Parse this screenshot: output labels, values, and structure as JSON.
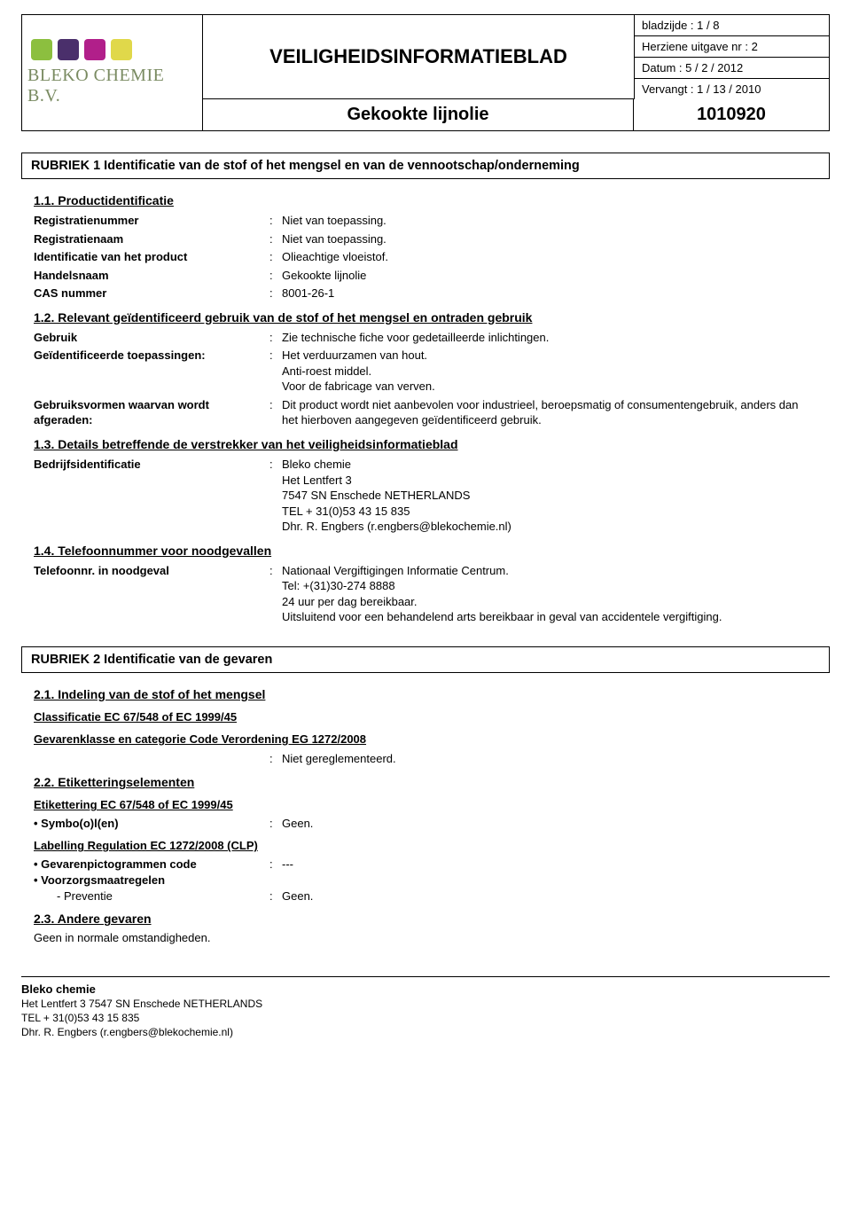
{
  "logo": {
    "colors": [
      "#8cbf3f",
      "#4a2f6b",
      "#b11f8a",
      "#e0d84a"
    ],
    "text": "BLEKO CHEMIE B.V."
  },
  "header": {
    "title": "VEILIGHEIDSINFORMATIEBLAD",
    "subtitle": "Gekookte lijnolie",
    "code": "1010920",
    "meta": {
      "page": "bladzijde : 1 / 8",
      "revision": "Herziene uitgave nr : 2",
      "date": "Datum : 5 / 2 / 2012",
      "replaces": "Vervangt : 1 / 13 / 2010"
    }
  },
  "rubriek1": {
    "heading": "RUBRIEK 1  Identificatie van de stof of het mengsel en van de vennootschap/onderneming",
    "s11": {
      "title": "1.1.  Productidentificatie",
      "rows": {
        "registratienummer": {
          "label": "Registratienummer",
          "value": "Niet van toepassing."
        },
        "registratienaam": {
          "label": "Registratienaam",
          "value": "Niet van toepassing."
        },
        "identificatie": {
          "label": "Identificatie van het product",
          "value": "Olieachtige vloeistof."
        },
        "handelsnaam": {
          "label": "Handelsnaam",
          "value": "Gekookte lijnolie"
        },
        "cas": {
          "label": "CAS nummer",
          "value": "8001-26-1"
        }
      }
    },
    "s12": {
      "title": "1.2.  Relevant geïdentificeerd gebruik van de stof of het mengsel en ontraden gebruik",
      "rows": {
        "gebruik": {
          "label": "Gebruik",
          "value": "Zie technische fiche voor gedetailleerde inlichtingen."
        },
        "toepassingen": {
          "label": "Geïdentificeerde toepassingen:",
          "value": "Het verduurzamen van hout.\nAnti-roest middel.\nVoor de fabricage van verven."
        },
        "afgeraden": {
          "label": "Gebruiksvormen waarvan wordt afgeraden:",
          "value": "Dit product wordt niet aanbevolen voor industrieel, beroepsmatig of consumentengebruik, anders dan het hierboven aangegeven geïdentificeerd gebruik."
        }
      }
    },
    "s13": {
      "title": "1.3.  Details betreffende de verstrekker van het veiligheidsinformatieblad",
      "rows": {
        "bedrijf": {
          "label": "Bedrijfsidentificatie",
          "value": "Bleko chemie\nHet Lentfert   3\n7547 SN  Enschede  NETHERLANDS\nTEL + 31(0)53 43 15 835\nDhr. R. Engbers (r.engbers@blekochemie.nl)"
        }
      }
    },
    "s14": {
      "title": "1.4.  Telefoonnummer voor noodgevallen",
      "rows": {
        "telefoon": {
          "label": "Telefoonnr. in noodgeval",
          "value": "Nationaal Vergiftigingen Informatie Centrum.\nTel: +(31)30-274 8888\n24 uur per dag bereikbaar.\nUitsluitend voor een behandelend arts bereikbaar in geval van accidentele vergiftiging."
        }
      }
    }
  },
  "rubriek2": {
    "heading": "RUBRIEK 2  Identificatie van de gevaren",
    "s21": {
      "title": "2.1.  Indeling van de stof of het mengsel",
      "classificatie": "Classificatie EC 67/548 of EC 1999/45",
      "gevarenklasse": "Gevarenklasse en categorie Code Verordening EG 1272/2008",
      "value": "Niet gereglementeerd."
    },
    "s22": {
      "title": "2.2.  Etiketteringselementen",
      "etikettering": "Etikettering EC 67/548 of EC 1999/45",
      "symbolen": {
        "label": "• Symbo(o)l(en)",
        "value": "Geen."
      },
      "labelling": "Labelling Regulation EC 1272/2008 (CLP)",
      "pictogrammen": {
        "label": "• Gevarenpictogrammen code",
        "value": "---"
      },
      "voorzorg": {
        "label": "• Voorzorgsmaatregelen"
      },
      "preventie": {
        "label": "- Preventie",
        "value": "Geen."
      }
    },
    "s23": {
      "title": "2.3.  Andere gevaren",
      "text": "Geen in normale omstandigheden."
    }
  },
  "footer": {
    "company": "Bleko chemie",
    "address": "Het Lentfert   3  7547 SN  Enschede  NETHERLANDS",
    "tel": "TEL + 31(0)53 43 15 835",
    "contact": "Dhr. R. Engbers (r.engbers@blekochemie.nl)"
  }
}
